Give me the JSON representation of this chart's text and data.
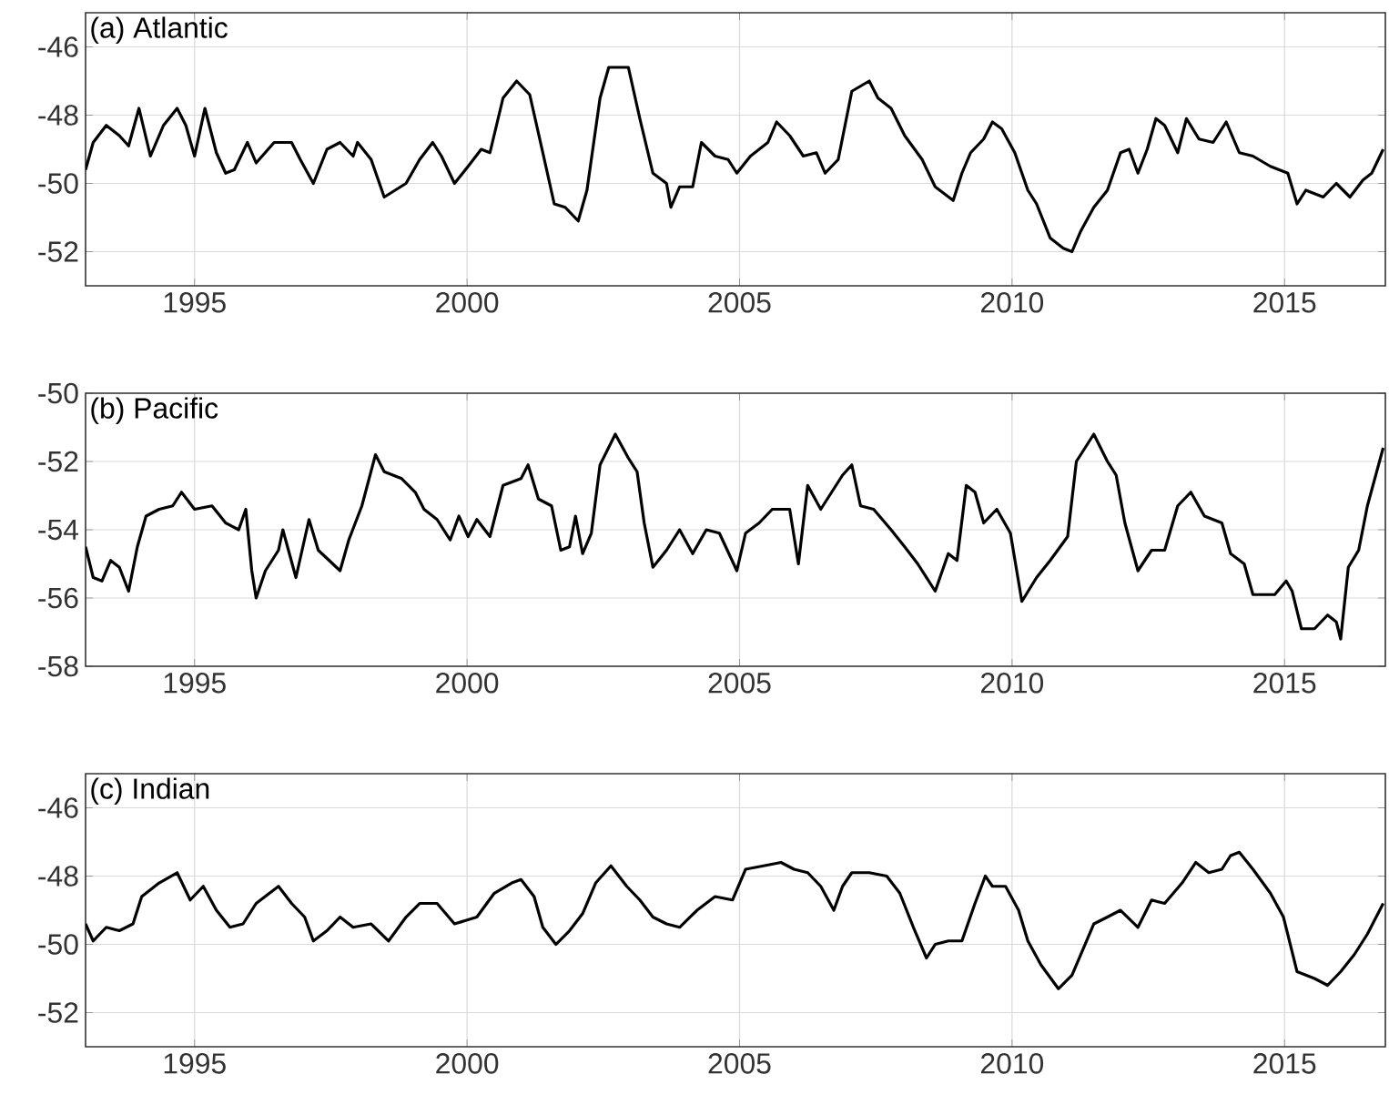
{
  "chart_data": [
    {
      "type": "line",
      "title": "(a) Atlantic",
      "xlim": [
        1993,
        2016.85
      ],
      "ylim": [
        -53,
        -45
      ],
      "xticks": [
        1995,
        2000,
        2005,
        2010,
        2015
      ],
      "yticks": [
        -52,
        -50,
        -48,
        -46
      ],
      "grid": true,
      "series": [
        {
          "color": "#000000",
          "x": [
            1993.0,
            1993.14,
            1993.38,
            1993.62,
            1993.79,
            1993.98,
            1994.19,
            1994.43,
            1994.68,
            1994.84,
            1995.0,
            1995.19,
            1995.4,
            1995.57,
            1995.73,
            1995.97,
            1996.13,
            1996.46,
            1996.78,
            1996.94,
            1997.18,
            1997.43,
            1997.67,
            1997.91,
            1997.99,
            1998.24,
            1998.48,
            1998.88,
            1999.13,
            1999.37,
            1999.53,
            1999.77,
            2000.02,
            2000.26,
            2000.42,
            2000.66,
            2000.91,
            2001.15,
            2001.39,
            2001.6,
            2001.8,
            2002.04,
            2002.2,
            2002.44,
            2002.6,
            2002.96,
            2003.17,
            2003.41,
            2003.66,
            2003.74,
            2003.9,
            2004.14,
            2004.3,
            2004.55,
            2004.79,
            2004.95,
            2005.2,
            2005.52,
            2005.68,
            2005.92,
            2006.17,
            2006.41,
            2006.57,
            2006.81,
            2007.06,
            2007.38,
            2007.54,
            2007.78,
            2008.03,
            2008.35,
            2008.59,
            2008.92,
            2009.08,
            2009.24,
            2009.48,
            2009.64,
            2009.81,
            2010.05,
            2010.29,
            2010.45,
            2010.7,
            2010.94,
            2011.1,
            2011.26,
            2011.5,
            2011.75,
            2011.99,
            2012.15,
            2012.31,
            2012.48,
            2012.64,
            2012.8,
            2013.04,
            2013.2,
            2013.43,
            2013.69,
            2013.93,
            2014.17,
            2014.42,
            2014.74,
            2015.06,
            2015.23,
            2015.39,
            2015.71,
            2015.95,
            2016.2,
            2016.44,
            2016.6,
            2016.81
          ],
          "values": [
            -49.6,
            -48.8,
            -48.3,
            -48.6,
            -48.9,
            -47.8,
            -49.2,
            -48.3,
            -47.8,
            -48.3,
            -49.2,
            -47.8,
            -49.1,
            -49.7,
            -49.6,
            -48.8,
            -49.4,
            -48.8,
            -48.8,
            -49.3,
            -50.0,
            -49.0,
            -48.8,
            -49.2,
            -48.8,
            -49.3,
            -50.4,
            -50.0,
            -49.3,
            -48.8,
            -49.2,
            -50.0,
            -49.5,
            -49.0,
            -49.1,
            -47.5,
            -47.0,
            -47.4,
            -49.1,
            -50.6,
            -50.7,
            -51.1,
            -50.2,
            -47.5,
            -46.6,
            -46.6,
            -48.1,
            -49.7,
            -50.0,
            -50.7,
            -50.1,
            -50.1,
            -48.8,
            -49.2,
            -49.3,
            -49.7,
            -49.2,
            -48.8,
            -48.2,
            -48.6,
            -49.2,
            -49.1,
            -49.7,
            -49.3,
            -47.3,
            -47.0,
            -47.5,
            -47.8,
            -48.6,
            -49.3,
            -50.1,
            -50.5,
            -49.7,
            -49.1,
            -48.7,
            -48.2,
            -48.4,
            -49.1,
            -50.2,
            -50.6,
            -51.6,
            -51.9,
            -52.0,
            -51.4,
            -50.7,
            -50.2,
            -49.1,
            -49.0,
            -49.7,
            -49.0,
            -48.1,
            -48.3,
            -49.1,
            -48.1,
            -48.7,
            -48.8,
            -48.2,
            -49.1,
            -49.2,
            -49.5,
            -49.7,
            -50.6,
            -50.2,
            -50.4,
            -50.0,
            -50.4,
            -49.9,
            -49.7,
            -49.0
          ]
        }
      ]
    },
    {
      "type": "line",
      "title": "(b) Pacific",
      "xlim": [
        1993,
        2016.85
      ],
      "ylim": [
        -58,
        -50
      ],
      "xticks": [
        1995,
        2000,
        2005,
        2010,
        2015
      ],
      "yticks": [
        -58,
        -56,
        -54,
        -52,
        -50
      ],
      "grid": true,
      "series": [
        {
          "color": "#000000",
          "x": [
            1993.0,
            1993.14,
            1993.3,
            1993.46,
            1993.62,
            1993.79,
            1993.95,
            1994.11,
            1994.35,
            1994.6,
            1994.76,
            1995.0,
            1995.32,
            1995.57,
            1995.81,
            1995.94,
            1996.05,
            1996.13,
            1996.3,
            1996.54,
            1996.62,
            1996.86,
            1997.1,
            1997.27,
            1997.67,
            1997.83,
            1998.07,
            1998.32,
            1998.48,
            1998.8,
            1999.05,
            1999.21,
            1999.45,
            1999.69,
            1999.85,
            2000.02,
            2000.18,
            2000.42,
            2000.66,
            2000.99,
            2001.12,
            2001.31,
            2001.55,
            2001.72,
            2001.88,
            2001.99,
            2002.12,
            2002.28,
            2002.44,
            2002.72,
            2002.96,
            2003.12,
            2003.25,
            2003.41,
            2003.66,
            2003.9,
            2004.14,
            2004.39,
            2004.63,
            2004.95,
            2005.11,
            2005.36,
            2005.6,
            2005.92,
            2006.08,
            2006.25,
            2006.49,
            2006.73,
            2006.89,
            2007.06,
            2007.22,
            2007.46,
            2007.78,
            2008.03,
            2008.27,
            2008.59,
            2008.83,
            2008.99,
            2009.16,
            2009.32,
            2009.48,
            2009.72,
            2009.97,
            2010.18,
            2010.45,
            2010.7,
            2011.02,
            2011.18,
            2011.5,
            2011.75,
            2011.91,
            2012.07,
            2012.31,
            2012.56,
            2012.8,
            2013.04,
            2013.28,
            2013.53,
            2013.85,
            2014.01,
            2014.26,
            2014.42,
            2014.82,
            2015.03,
            2015.14,
            2015.31,
            2015.55,
            2015.79,
            2015.95,
            2016.03,
            2016.17,
            2016.36,
            2016.52,
            2016.81
          ],
          "values": [
            -54.5,
            -55.4,
            -55.5,
            -54.9,
            -55.1,
            -55.8,
            -54.5,
            -53.6,
            -53.4,
            -53.3,
            -52.9,
            -53.4,
            -53.3,
            -53.8,
            -54.0,
            -53.4,
            -55.2,
            -56.0,
            -55.2,
            -54.6,
            -54.0,
            -55.4,
            -53.7,
            -54.6,
            -55.2,
            -54.3,
            -53.3,
            -51.8,
            -52.3,
            -52.5,
            -52.9,
            -53.4,
            -53.7,
            -54.3,
            -53.6,
            -54.2,
            -53.7,
            -54.2,
            -52.7,
            -52.5,
            -52.1,
            -53.1,
            -53.3,
            -54.6,
            -54.5,
            -53.6,
            -54.7,
            -54.1,
            -52.1,
            -51.2,
            -51.9,
            -52.3,
            -53.8,
            -55.1,
            -54.6,
            -54.0,
            -54.7,
            -54.0,
            -54.1,
            -55.2,
            -54.1,
            -53.8,
            -53.4,
            -53.4,
            -55.0,
            -52.7,
            -53.4,
            -52.8,
            -52.4,
            -52.1,
            -53.3,
            -53.4,
            -54.0,
            -54.5,
            -55.0,
            -55.8,
            -54.7,
            -54.9,
            -52.7,
            -52.9,
            -53.8,
            -53.4,
            -54.1,
            -56.1,
            -55.4,
            -54.9,
            -54.2,
            -52.0,
            -51.2,
            -52.0,
            -52.4,
            -53.8,
            -55.2,
            -54.6,
            -54.6,
            -53.3,
            -52.9,
            -53.6,
            -53.8,
            -54.7,
            -55.0,
            -55.9,
            -55.9,
            -55.5,
            -55.8,
            -56.9,
            -56.9,
            -56.5,
            -56.7,
            -57.2,
            -55.1,
            -54.6,
            -53.3,
            -51.6
          ]
        }
      ]
    },
    {
      "type": "line",
      "title": "(c) Indian",
      "xlim": [
        1993,
        2016.85
      ],
      "ylim": [
        -53,
        -45
      ],
      "xticks": [
        1995,
        2000,
        2005,
        2010,
        2015
      ],
      "yticks": [
        -52,
        -50,
        -48,
        -46
      ],
      "grid": true,
      "series": [
        {
          "color": "#000000",
          "x": [
            1993.0,
            1993.14,
            1993.38,
            1993.62,
            1993.87,
            1994.03,
            1994.35,
            1994.68,
            1994.92,
            1995.16,
            1995.4,
            1995.65,
            1995.89,
            1996.13,
            1996.54,
            1996.78,
            1997.02,
            1997.18,
            1997.43,
            1997.67,
            1997.91,
            1998.24,
            1998.56,
            1998.88,
            1999.13,
            1999.45,
            1999.77,
            2000.18,
            2000.5,
            2000.82,
            2000.99,
            2001.23,
            2001.39,
            2001.63,
            2001.88,
            2002.12,
            2002.36,
            2002.64,
            2002.93,
            2003.17,
            2003.41,
            2003.66,
            2003.9,
            2004.22,
            2004.55,
            2004.87,
            2005.11,
            2005.44,
            2005.76,
            2006.0,
            2006.25,
            2006.49,
            2006.73,
            2006.89,
            2007.06,
            2007.38,
            2007.7,
            2007.94,
            2008.19,
            2008.43,
            2008.59,
            2008.83,
            2009.08,
            2009.32,
            2009.51,
            2009.64,
            2009.88,
            2010.12,
            2010.29,
            2010.53,
            2010.85,
            2011.1,
            2011.34,
            2011.5,
            2011.75,
            2011.99,
            2012.31,
            2012.56,
            2012.8,
            2013.12,
            2013.37,
            2013.61,
            2013.85,
            2014.01,
            2014.17,
            2014.42,
            2014.74,
            2014.98,
            2015.23,
            2015.55,
            2015.79,
            2016.03,
            2016.28,
            2016.52,
            2016.81
          ],
          "values": [
            -49.4,
            -49.9,
            -49.5,
            -49.6,
            -49.4,
            -48.6,
            -48.2,
            -47.9,
            -48.7,
            -48.3,
            -49.0,
            -49.5,
            -49.4,
            -48.8,
            -48.3,
            -48.8,
            -49.2,
            -49.9,
            -49.6,
            -49.2,
            -49.5,
            -49.4,
            -49.9,
            -49.2,
            -48.8,
            -48.8,
            -49.4,
            -49.2,
            -48.5,
            -48.2,
            -48.1,
            -48.6,
            -49.5,
            -50.0,
            -49.6,
            -49.1,
            -48.2,
            -47.7,
            -48.3,
            -48.7,
            -49.2,
            -49.4,
            -49.5,
            -49.0,
            -48.6,
            -48.7,
            -47.8,
            -47.7,
            -47.6,
            -47.8,
            -47.9,
            -48.3,
            -49.0,
            -48.3,
            -47.9,
            -47.9,
            -48.0,
            -48.5,
            -49.5,
            -50.4,
            -50.0,
            -49.9,
            -49.9,
            -48.8,
            -48.0,
            -48.3,
            -48.3,
            -49.0,
            -49.9,
            -50.6,
            -51.3,
            -50.9,
            -50.0,
            -49.4,
            -49.2,
            -49.0,
            -49.5,
            -48.7,
            -48.8,
            -48.2,
            -47.6,
            -47.9,
            -47.8,
            -47.4,
            -47.3,
            -47.8,
            -48.5,
            -49.2,
            -50.8,
            -51.0,
            -51.2,
            -50.8,
            -50.3,
            -49.7,
            -48.8
          ]
        }
      ]
    }
  ]
}
